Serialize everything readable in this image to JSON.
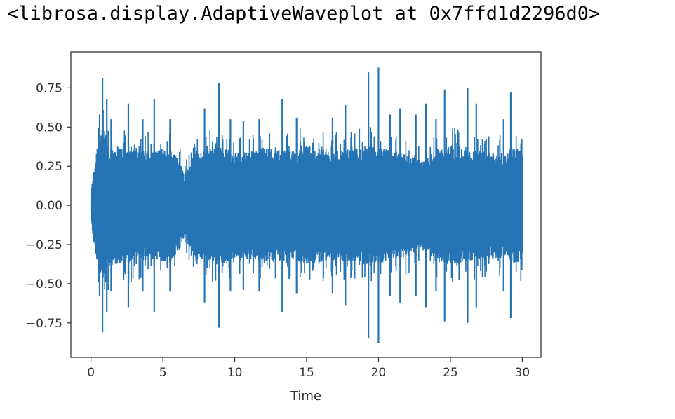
{
  "output_repr": "<librosa.display.AdaptiveWaveplot at 0x7ffd1d2296d0>",
  "chart_data": {
    "type": "line",
    "title": "",
    "xlabel": "Time",
    "ylabel": "",
    "xlim": [
      -1.4,
      31.3
    ],
    "ylim": [
      -0.97,
      0.98
    ],
    "x_ticks": [
      0,
      5,
      10,
      15,
      20,
      25,
      30
    ],
    "x_tick_labels": [
      "0",
      "5",
      "10",
      "15",
      "20",
      "25",
      "30"
    ],
    "y_ticks": [
      0.75,
      0.5,
      0.25,
      0.0,
      -0.25,
      -0.5,
      -0.75
    ],
    "y_tick_labels": [
      "0.75",
      "0.50",
      "0.25",
      "0.00",
      "−0.25",
      "−0.50",
      "−0.75"
    ],
    "grid": false,
    "series": [
      {
        "color": "#2674b4",
        "duration": 30.0,
        "envelope_time": [
          0,
          0.1,
          0.3,
          0.5,
          0.7,
          1,
          1.5,
          2,
          3,
          4,
          5,
          6,
          6.5,
          7,
          8,
          9,
          10,
          11,
          12,
          13,
          14,
          15,
          16,
          17,
          18,
          19,
          20,
          21,
          22,
          23,
          24,
          25,
          26,
          27,
          28,
          29,
          29.5,
          30
        ],
        "envelope_amp": [
          0.05,
          0.18,
          0.3,
          0.45,
          0.5,
          0.42,
          0.38,
          0.38,
          0.36,
          0.35,
          0.36,
          0.33,
          0.2,
          0.3,
          0.36,
          0.38,
          0.34,
          0.34,
          0.37,
          0.36,
          0.35,
          0.38,
          0.36,
          0.35,
          0.36,
          0.38,
          0.37,
          0.35,
          0.33,
          0.28,
          0.36,
          0.38,
          0.36,
          0.35,
          0.34,
          0.33,
          0.38,
          0.36
        ],
        "peaks": [
          {
            "t": 0.6,
            "top": 0.58,
            "bottom": -0.58
          },
          {
            "t": 0.8,
            "top": 0.81,
            "bottom": -0.81
          },
          {
            "t": 1.1,
            "top": 0.68,
            "bottom": -0.68
          },
          {
            "t": 1.4,
            "top": 0.55,
            "bottom": -0.55
          },
          {
            "t": 2.6,
            "top": 0.65,
            "bottom": -0.65
          },
          {
            "t": 3.6,
            "top": 0.55,
            "bottom": -0.55
          },
          {
            "t": 4.4,
            "top": 0.68,
            "bottom": -0.68
          },
          {
            "t": 5.5,
            "top": 0.55,
            "bottom": -0.55
          },
          {
            "t": 7.9,
            "top": 0.62,
            "bottom": -0.62
          },
          {
            "t": 8.9,
            "top": 0.78,
            "bottom": -0.78
          },
          {
            "t": 9.7,
            "top": 0.55,
            "bottom": -0.55
          },
          {
            "t": 10.6,
            "top": 0.54,
            "bottom": -0.54
          },
          {
            "t": 11.7,
            "top": 0.55,
            "bottom": -0.55
          },
          {
            "t": 13.3,
            "top": 0.68,
            "bottom": -0.68
          },
          {
            "t": 14.3,
            "top": 0.56,
            "bottom": -0.56
          },
          {
            "t": 16.8,
            "top": 0.56,
            "bottom": -0.56
          },
          {
            "t": 17.7,
            "top": 0.64,
            "bottom": -0.64
          },
          {
            "t": 19.3,
            "top": 0.85,
            "bottom": -0.85
          },
          {
            "t": 20.0,
            "top": 0.88,
            "bottom": -0.88
          },
          {
            "t": 20.8,
            "top": 0.58,
            "bottom": -0.58
          },
          {
            "t": 21.5,
            "top": 0.62,
            "bottom": -0.62
          },
          {
            "t": 22.6,
            "top": 0.58,
            "bottom": -0.58
          },
          {
            "t": 23.3,
            "top": 0.65,
            "bottom": -0.65
          },
          {
            "t": 24.0,
            "top": 0.55,
            "bottom": -0.55
          },
          {
            "t": 24.6,
            "top": 0.74,
            "bottom": -0.74
          },
          {
            "t": 26.2,
            "top": 0.75,
            "bottom": -0.75
          },
          {
            "t": 26.8,
            "top": 0.65,
            "bottom": -0.65
          },
          {
            "t": 28.7,
            "top": 0.55,
            "bottom": -0.55
          },
          {
            "t": 29.2,
            "top": 0.72,
            "bottom": -0.72
          }
        ]
      }
    ]
  }
}
